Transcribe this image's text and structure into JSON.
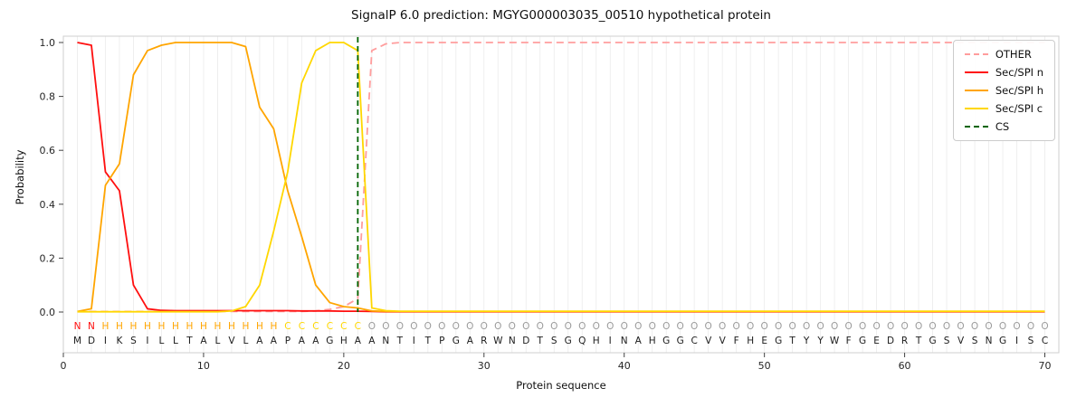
{
  "legend": {
    "items": [
      {
        "label": "OTHER",
        "color": "#ff9d9d",
        "dash": true
      },
      {
        "label": "Sec/SPI n",
        "color": "#ff0f0f",
        "dash": false
      },
      {
        "label": "Sec/SPI h",
        "color": "#ffa500",
        "dash": false
      },
      {
        "label": "Sec/SPI c",
        "color": "#ffd700",
        "dash": false
      },
      {
        "label": "CS",
        "color": "#006400",
        "dash": true
      }
    ],
    "position": "upper right"
  },
  "chart_data": {
    "type": "line",
    "title": "SignalP 6.0 prediction: MGYG000003035_00510 hypothetical protein",
    "xlabel": "Protein sequence",
    "ylabel": "Probability",
    "xlim": [
      0,
      71
    ],
    "ylim": [
      0,
      1.03
    ],
    "x_start": 1,
    "x_ticks": [
      0,
      10,
      20,
      30,
      40,
      50,
      60,
      70
    ],
    "y_ticks": [
      0.0,
      0.2,
      0.4,
      0.6,
      0.8,
      1.0
    ],
    "grid": true,
    "legend_position": "upper right",
    "cs_position": 21,
    "cs_color": "#006400",
    "sequence": "MDIKSILLTALVLAAPAAGHAANTITPGARWNDTSGQHINAHGGCVVFHEGTYYWFGEDRTGSVSNGISC",
    "residue_labels": "NNHHHHHHHHHHHHHCCCCCCOOOOOOOOOOOOOOOOOOOOOOOOOOOOOOOOOOOOOOOOOOOOOOOO",
    "label_colors": {
      "N": "#ff0f0f",
      "H": "#ffa500",
      "C": "#ffd700",
      "O": "#9b9b9b"
    },
    "style": {
      "grid_color": "#ebebeb",
      "frame_color": "#cfcfcf",
      "tick_color": "#444444",
      "text_color": "#262626",
      "seq_color": "#1c1c1c"
    },
    "series": [
      {
        "name": "OTHER",
        "color": "#ff9d9d",
        "dashed": true,
        "values": [
          0.002,
          0.002,
          0.002,
          0.002,
          0.002,
          0.002,
          0.002,
          0.002,
          0.002,
          0.002,
          0.002,
          0.002,
          0.002,
          0.002,
          0.002,
          0.002,
          0.002,
          0.004,
          0.01,
          0.02,
          0.05,
          0.97,
          0.995,
          1.0,
          1.0,
          1.0,
          1.0,
          1.0,
          1.0,
          1.0,
          1.0,
          1.0,
          1.0,
          1.0,
          1.0,
          1.0,
          1.0,
          1.0,
          1.0,
          1.0,
          1.0,
          1.0,
          1.0,
          1.0,
          1.0,
          1.0,
          1.0,
          1.0,
          1.0,
          1.0,
          1.0,
          1.0,
          1.0,
          1.0,
          1.0,
          1.0,
          1.0,
          1.0,
          1.0,
          1.0,
          1.0,
          1.0,
          1.0,
          1.0,
          1.0,
          1.0,
          1.0,
          1.0,
          1.0,
          1.0
        ]
      },
      {
        "name": "Sec/SPI n",
        "color": "#ff0f0f",
        "dashed": false,
        "values": [
          1.0,
          0.99,
          0.52,
          0.45,
          0.1,
          0.012,
          0.006,
          0.005,
          0.005,
          0.005,
          0.005,
          0.005,
          0.005,
          0.005,
          0.005,
          0.005,
          0.004,
          0.004,
          0.004,
          0.003,
          0.003,
          0.002,
          0.001,
          0.001,
          0.001,
          0.001,
          0.001,
          0.001,
          0.001,
          0.001,
          0.001,
          0.001,
          0.001,
          0.001,
          0.001,
          0.001,
          0.001,
          0.001,
          0.001,
          0.001,
          0.001,
          0.001,
          0.001,
          0.001,
          0.001,
          0.001,
          0.001,
          0.001,
          0.001,
          0.001,
          0.001,
          0.001,
          0.001,
          0.001,
          0.001,
          0.001,
          0.001,
          0.001,
          0.001,
          0.001,
          0.001,
          0.001,
          0.001,
          0.001,
          0.001,
          0.001,
          0.001,
          0.001,
          0.001,
          0.001
        ]
      },
      {
        "name": "Sec/SPI h",
        "color": "#ffa500",
        "dashed": false,
        "values": [
          0.002,
          0.012,
          0.47,
          0.55,
          0.88,
          0.97,
          0.99,
          1.0,
          1.0,
          1.0,
          1.0,
          1.0,
          0.985,
          0.76,
          0.68,
          0.45,
          0.28,
          0.1,
          0.035,
          0.02,
          0.015,
          0.004,
          0.002,
          0.002,
          0.002,
          0.002,
          0.002,
          0.002,
          0.002,
          0.002,
          0.002,
          0.002,
          0.002,
          0.002,
          0.002,
          0.002,
          0.002,
          0.002,
          0.002,
          0.002,
          0.002,
          0.002,
          0.002,
          0.002,
          0.002,
          0.002,
          0.002,
          0.002,
          0.002,
          0.002,
          0.002,
          0.002,
          0.002,
          0.002,
          0.002,
          0.002,
          0.002,
          0.002,
          0.002,
          0.002,
          0.002,
          0.002,
          0.002,
          0.002,
          0.002,
          0.002,
          0.002,
          0.002,
          0.002,
          0.002
        ]
      },
      {
        "name": "Sec/SPI c",
        "color": "#ffd700",
        "dashed": false,
        "values": [
          0.001,
          0.001,
          0.001,
          0.001,
          0.001,
          0.001,
          0.001,
          0.001,
          0.001,
          0.001,
          0.001,
          0.004,
          0.02,
          0.1,
          0.3,
          0.52,
          0.85,
          0.97,
          1.0,
          1.0,
          0.97,
          0.015,
          0.005,
          0.003,
          0.003,
          0.003,
          0.003,
          0.003,
          0.003,
          0.003,
          0.003,
          0.003,
          0.003,
          0.003,
          0.003,
          0.003,
          0.003,
          0.003,
          0.003,
          0.003,
          0.003,
          0.003,
          0.003,
          0.003,
          0.003,
          0.003,
          0.003,
          0.003,
          0.003,
          0.003,
          0.003,
          0.003,
          0.003,
          0.003,
          0.003,
          0.003,
          0.003,
          0.003,
          0.003,
          0.003,
          0.003,
          0.003,
          0.003,
          0.003,
          0.003,
          0.003,
          0.003,
          0.003,
          0.003,
          0.003
        ]
      }
    ]
  }
}
